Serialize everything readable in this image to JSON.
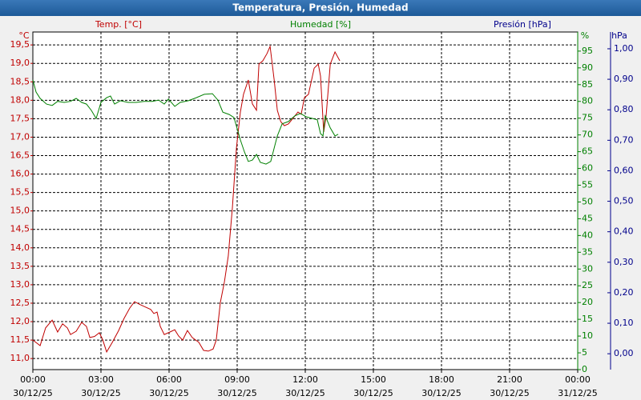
{
  "chart_data": {
    "type": "line",
    "title": "Temperatura, Presión, Humedad",
    "xlim": [
      0,
      24
    ],
    "xticks": [
      {
        "value": 0,
        "label": "00:00"
      },
      {
        "value": 3,
        "label": "03:00"
      },
      {
        "value": 6,
        "label": "06:00"
      },
      {
        "value": 9,
        "label": "09:00"
      },
      {
        "value": 12,
        "label": "12:00"
      },
      {
        "value": 15,
        "label": "15:00"
      },
      {
        "value": 18,
        "label": "18:00"
      },
      {
        "value": 21,
        "label": "21:00"
      },
      {
        "value": 24,
        "label": "00:00"
      }
    ],
    "xtick_dates": [
      "30/12/25",
      "30/12/25",
      "30/12/25",
      "30/12/25",
      "30/12/25",
      "30/12/25",
      "30/12/25",
      "30/12/25",
      "31/12/25"
    ],
    "ylabel": "Temp. [°C]",
    "yunit": "°C",
    "ylim": [
      10.7,
      19.85
    ],
    "yticks": [
      {
        "value": 11.0,
        "label": "11,0"
      },
      {
        "value": 11.5,
        "label": "11,5"
      },
      {
        "value": 12.0,
        "label": "12,0"
      },
      {
        "value": 12.5,
        "label": "12,5"
      },
      {
        "value": 13.0,
        "label": "13,0"
      },
      {
        "value": 13.5,
        "label": "13,5"
      },
      {
        "value": 14.0,
        "label": "14,0"
      },
      {
        "value": 14.5,
        "label": "14,5"
      },
      {
        "value": 15.0,
        "label": "15,0"
      },
      {
        "value": 15.5,
        "label": "15,5"
      },
      {
        "value": 16.0,
        "label": "16,0"
      },
      {
        "value": 16.5,
        "label": "16,5"
      },
      {
        "value": 17.0,
        "label": "17,0"
      },
      {
        "value": 17.5,
        "label": "17,5"
      },
      {
        "value": 18.0,
        "label": "18,0"
      },
      {
        "value": 18.5,
        "label": "18,5"
      },
      {
        "value": 19.0,
        "label": "19,0"
      },
      {
        "value": 19.5,
        "label": "19,5"
      }
    ],
    "y2label": "Humedad [%]",
    "y2unit": "%",
    "y2lim": [
      0,
      100.7
    ],
    "y2ticks": [
      0,
      5,
      10,
      15,
      20,
      25,
      30,
      35,
      40,
      45,
      50,
      55,
      60,
      65,
      70,
      75,
      80,
      85,
      90,
      95
    ],
    "y3label": "Presión [hPa]",
    "y3unit": "hPa",
    "y3lim": [
      -0.052,
      1.055
    ],
    "y3ticks": [
      {
        "value": 0,
        "label": "0,00"
      },
      {
        "value": 0.1,
        "label": "0,10"
      },
      {
        "value": 0.2,
        "label": "0,20"
      },
      {
        "value": 0.3,
        "label": "0,30"
      },
      {
        "value": 0.4,
        "label": "0,40"
      },
      {
        "value": 0.5,
        "label": "0,50"
      },
      {
        "value": 0.6,
        "label": "0,60"
      },
      {
        "value": 0.7,
        "label": "0,70"
      },
      {
        "value": 0.8,
        "label": "0,80"
      },
      {
        "value": 0.9,
        "label": "0,90"
      },
      {
        "value": 1.0,
        "label": "1,00"
      }
    ],
    "grid": true,
    "series": [
      {
        "axis": "y",
        "color": "#c00000",
        "x": [
          0,
          0.32,
          0.56,
          0.85,
          1.09,
          1.31,
          1.52,
          1.66,
          1.91,
          2.15,
          2.36,
          2.51,
          2.72,
          2.93,
          3.07,
          3.25,
          3.5,
          3.78,
          4.02,
          4.27,
          4.48,
          4.73,
          4.98,
          5.19,
          5.33,
          5.47,
          5.61,
          5.79,
          6.04,
          6.25,
          6.42,
          6.6,
          6.81,
          7.02,
          7.31,
          7.52,
          7.73,
          7.94,
          8.08,
          8.26,
          8.44,
          8.61,
          8.79,
          8.97,
          9.14,
          9.28,
          9.49,
          9.67,
          9.85,
          9.96,
          10.13,
          10.31,
          10.45,
          10.63,
          10.77,
          10.92,
          11.08,
          11.26,
          11.51,
          11.68,
          11.82,
          11.96,
          12.14,
          12.39,
          12.57,
          12.67,
          12.81,
          12.92,
          13.1,
          13.31,
          13.52
        ],
        "values": [
          11.5,
          11.35,
          11.83,
          12.04,
          11.72,
          11.94,
          11.83,
          11.65,
          11.74,
          11.98,
          11.87,
          11.57,
          11.6,
          11.7,
          11.52,
          11.18,
          11.44,
          11.76,
          12.09,
          12.37,
          12.54,
          12.46,
          12.39,
          12.33,
          12.22,
          12.26,
          11.87,
          11.65,
          11.72,
          11.78,
          11.61,
          11.5,
          11.76,
          11.57,
          11.44,
          11.22,
          11.2,
          11.26,
          11.5,
          12.52,
          13.08,
          13.78,
          15.08,
          16.71,
          17.68,
          18.16,
          18.55,
          17.9,
          17.73,
          18.98,
          19.07,
          19.26,
          19.46,
          18.55,
          17.73,
          17.42,
          17.31,
          17.36,
          17.55,
          17.68,
          17.62,
          18.07,
          18.16,
          18.87,
          18.98,
          18.66,
          17.14,
          17.6,
          18.98,
          19.31,
          19.07
        ]
      },
      {
        "axis": "y2",
        "color": "#008000",
        "x": [
          0,
          0.14,
          0.32,
          0.6,
          0.85,
          1.09,
          1.38,
          1.66,
          1.91,
          2.15,
          2.36,
          2.58,
          2.79,
          3.0,
          3.25,
          3.42,
          3.6,
          3.85,
          4.2,
          4.55,
          4.91,
          5.26,
          5.54,
          5.79,
          5.97,
          6.25,
          6.49,
          6.85,
          7.2,
          7.55,
          7.91,
          8.15,
          8.37,
          8.65,
          8.86,
          9.14,
          9.32,
          9.49,
          9.67,
          9.85,
          10.02,
          10.27,
          10.48,
          10.63,
          10.77,
          10.98,
          11.26,
          11.54,
          11.79,
          12.04,
          12.32,
          12.53,
          12.67,
          12.78,
          12.88,
          13.1,
          13.31,
          13.45
        ],
        "values": [
          86.4,
          82.8,
          80.9,
          79.2,
          78.8,
          80.0,
          79.7,
          80.0,
          80.9,
          79.7,
          79.2,
          77.3,
          74.9,
          79.7,
          81.1,
          81.6,
          79.2,
          80.2,
          79.7,
          79.7,
          80.0,
          80.0,
          80.4,
          79.2,
          80.7,
          78.5,
          79.7,
          80.2,
          81.1,
          82.1,
          82.3,
          80.4,
          76.8,
          76.1,
          75.2,
          68.5,
          64.9,
          62.1,
          62.5,
          64.2,
          61.8,
          61.3,
          62.1,
          66.1,
          69.7,
          73.3,
          74.0,
          75.7,
          76.4,
          75.4,
          74.9,
          74.5,
          70.4,
          69.7,
          75.7,
          72.1,
          69.7,
          70.2
        ]
      }
    ]
  }
}
